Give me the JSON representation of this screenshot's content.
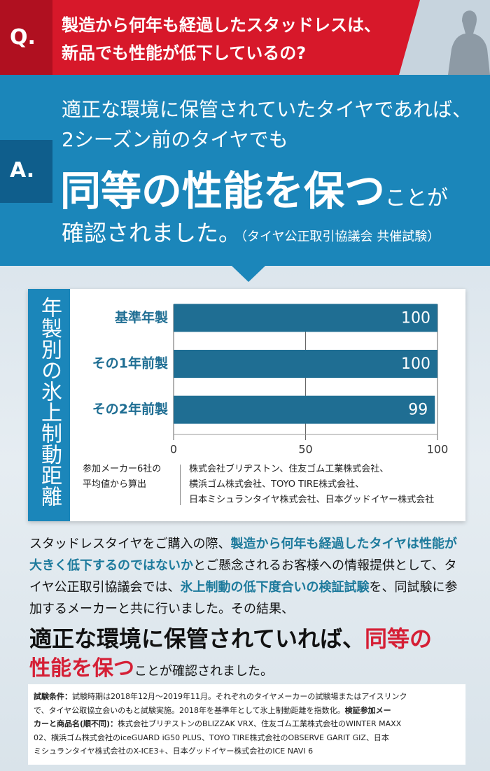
{
  "question": {
    "label": "Q.",
    "lines": [
      "製造から何年も経過したスタッドレスは、",
      "新品でも性能が低下しているの?"
    ]
  },
  "answer": {
    "label": "A.",
    "lines": [
      "適正な環境に保管されていたタイヤであれば、",
      "2シーズン前のタイヤでも"
    ],
    "emphasis": "同等の性能を保つ",
    "emphasis_suffix": "ことが",
    "last": "確認されました。",
    "source": "（タイヤ公正取引協議会 共催試験）"
  },
  "chart_data": {
    "type": "bar",
    "orientation": "horizontal",
    "title": "年製別の氷上制動距離",
    "categories": [
      "基準年製",
      "その1年前製",
      "その2年前製"
    ],
    "values": [
      100,
      100,
      99
    ],
    "color": "#1f6e93",
    "xlim": [
      0,
      100
    ],
    "xticks": [
      0,
      50,
      100
    ],
    "grid": true,
    "note": [
      "参加メーカー6社の",
      "平均値から算出"
    ],
    "makers": [
      "株式会社ブリヂストン、住友ゴム工業株式会社、",
      "横浜ゴム株式会社、TOYO TIRE株式会社、",
      "日本ミシュランタイヤ株式会社、日本グッドイヤー株式会社"
    ]
  },
  "body": {
    "lines": [
      [
        "スタッドレスタイヤをご購入の際、",
        "製造から何年も経過したタイヤは性能が"
      ],
      [
        "大きく低下するのではないか",
        "とご懸念されるお客様への情報提供として、タ"
      ],
      [
        "イヤ公正取引協議会では、",
        "氷上制動の低下度合いの検証試験",
        "を、同試験に参"
      ],
      [
        "加するメーカーと共に行いました。その結果、"
      ],
      [
        "適正な環境に保管されていれば、",
        "同等の"
      ],
      [
        "性能を保つ",
        "ことが確認されました。"
      ]
    ]
  },
  "conditions": {
    "lines": [
      [
        "試験条件：",
        "試験時期は2018年12月～2019年11月。それぞれのタイヤメーカーの試験場またはアイスリンク"
      ],
      [
        "で、タイヤ公取協立会いのもと試験実施。2018年を基準年として氷上制動距離を指数化。",
        "検証参加メー"
      ],
      [
        "カーと商品名(順不同)：",
        "株式会社ブリヂストンのBLIZZAK VRX、住友ゴム工業株式会社のWINTER MAXX"
      ],
      [
        "02、横浜ゴム株式会社のiceGUARD iG50 PLUS、TOYO TIRE株式会社のOBSERVE GARIT GIZ、日本"
      ],
      [
        "ミシュランタイヤ株式会社のX-ICE3+、日本グッドイヤー株式会社のICE NAVI 6"
      ]
    ]
  }
}
